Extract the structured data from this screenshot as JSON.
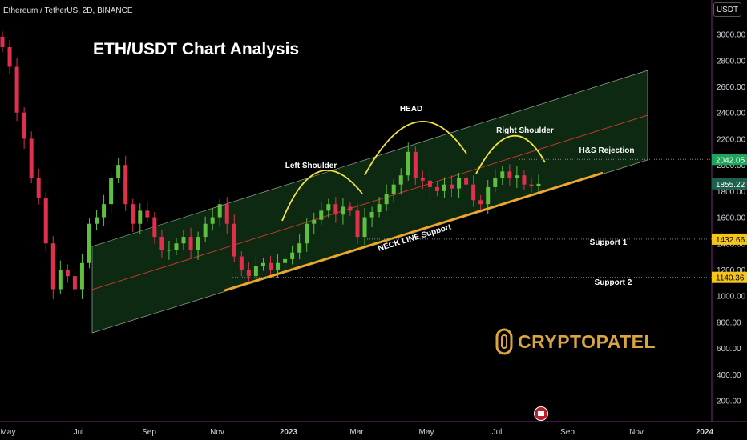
{
  "header": {
    "symbol_line": "Ethereum / TetherUS, 2D, BINANCE"
  },
  "currency": "USDT",
  "title": "ETH/USDT Chart Analysis",
  "brand": "CRYPTOPATEL",
  "chart_data": {
    "type": "candlestick",
    "y_axis": {
      "ticks": [
        200,
        400,
        600,
        800,
        1000,
        1200,
        1400,
        1600,
        1800,
        2000,
        2200,
        2400,
        2600,
        2800,
        3000
      ],
      "tick_labels": [
        "200.00",
        "400.00",
        "600.00",
        "800.00",
        "1000.00",
        "1200.00",
        "1400.00",
        "1600.00",
        "1800.00",
        "2000.00",
        "2200.00",
        "2400.00",
        "2600.00",
        "2800.00",
        "3000.00"
      ],
      "range": [
        50,
        3120
      ]
    },
    "x_axis": {
      "labels": [
        "May",
        "Jul",
        "Sep",
        "Nov",
        "2023",
        "Mar",
        "May",
        "Jul",
        "Sep",
        "Nov",
        "2024"
      ],
      "bold": [
        "2023",
        "2024"
      ]
    },
    "price_labels": [
      {
        "value": 2042.05,
        "text": "2042.05",
        "color": "#1ea35a"
      },
      {
        "value": 1855.22,
        "text": "1855.22",
        "color": "#1f5f4d"
      },
      {
        "value": 1432.66,
        "text": "1432.66",
        "color": "#f5c518"
      },
      {
        "value": 1140.36,
        "text": "1140.36",
        "color": "#f5c518"
      }
    ],
    "annotations": {
      "left_shoulder": "Left Shoulder",
      "head": "HEAD",
      "right_shoulder": "Right Shoulder",
      "hs_rejection": "H&S Rejection",
      "neck_line": "NECK LINE Support",
      "support1": "Support 1",
      "support2": "Support 2"
    },
    "series": [
      {
        "name": "close",
        "values": [
          2900,
          2750,
          2400,
          2200,
          1900,
          1750,
          1400,
          1050,
          1200,
          1150,
          1050,
          1250,
          1550,
          1600,
          1700,
          1900,
          2000,
          1700,
          1550,
          1650,
          1600,
          1450,
          1350,
          1350,
          1400,
          1450,
          1350,
          1450,
          1550,
          1600,
          1700,
          1550,
          1300,
          1200,
          1150,
          1230,
          1250,
          1200,
          1250,
          1280,
          1330,
          1400,
          1550,
          1580,
          1650,
          1700,
          1620,
          1680,
          1650,
          1450,
          1600,
          1640,
          1700,
          1780,
          1850,
          1920,
          2100,
          1900,
          1880,
          1830,
          1800,
          1850,
          1820,
          1900,
          1850,
          1730,
          1700,
          1830,
          1900,
          1950,
          1900,
          1920,
          1850,
          1840,
          1855
        ]
      }
    ]
  }
}
